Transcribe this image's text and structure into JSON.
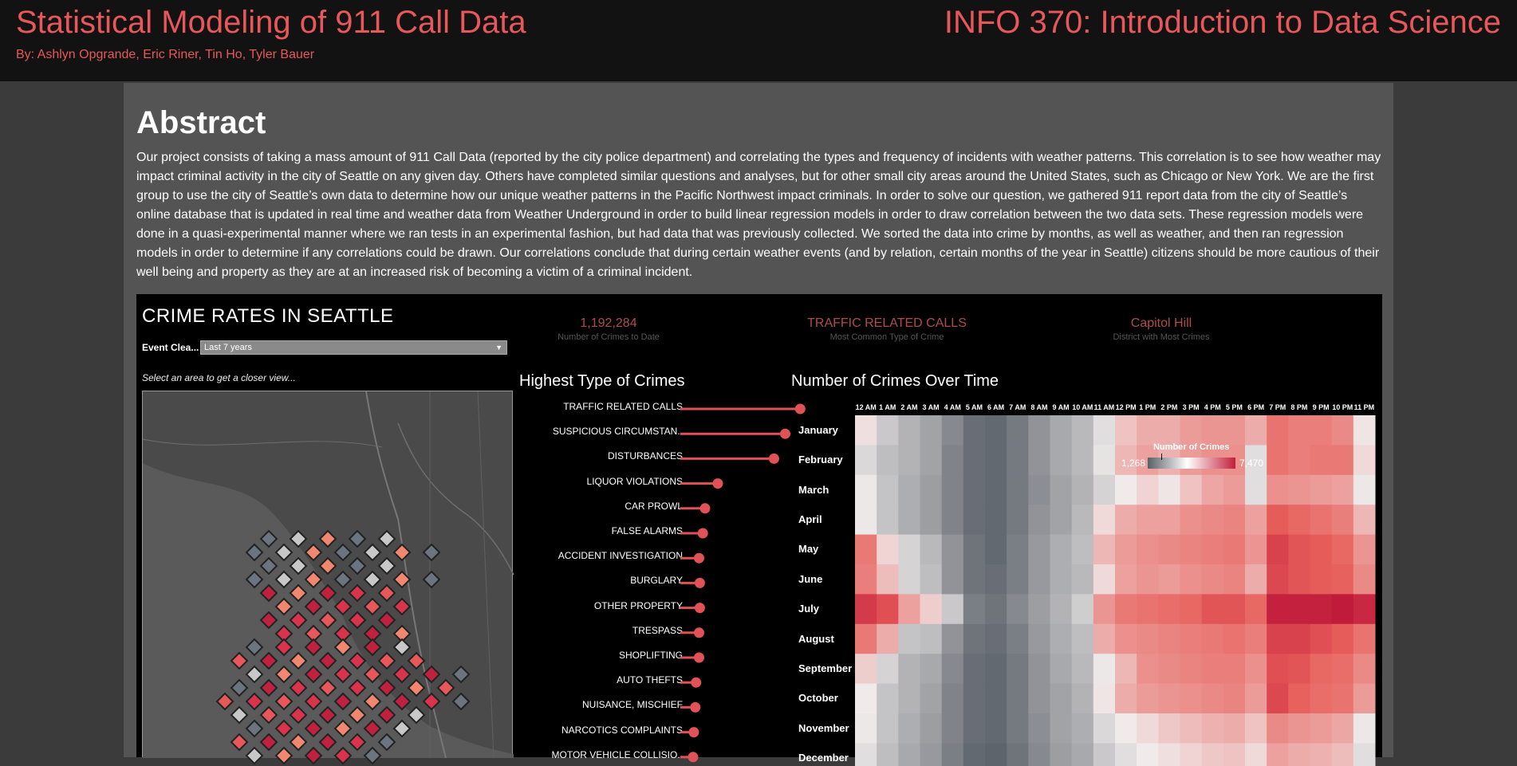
{
  "header": {
    "title": "Statistical Modeling of 911 Call Data",
    "authors": "By: Ashlyn Opgrande, Eric Riner, Tin Ho, Tyler Bauer",
    "course": "INFO 370: Introduction to Data Science"
  },
  "abstract": {
    "heading": "Abstract",
    "body": "Our project consists of taking a mass amount of 911 Call Data (reported by the city police department) and correlating the types and frequency of incidents with weather patterns. This correlation is to see how weather may impact criminal activity in the city of Seattle on any given day. Others have completed similar questions and analyses, but for other small city areas around the United States, such as Chicago or New York. We are the first group to use the city of Seattle’s own data to determine how our unique weather patterns in the Pacific Northwest impact criminals. In order to solve our question, we gathered 911 report data from the city of Seattle’s online database that is updated in real time and weather data from Weather Underground in order to build linear regression models in order to draw correlation between the two data sets. These regression models were done in a quasi-experimental manner where we ran tests in an experimental fashion, but had data that was previously collected. We sorted the data into crime by months, as well as weather, and then ran regression models in order to determine if any correlations could be drawn. Our correlations conclude that during certain weather events (and by relation, certain months of the year in Seattle) citizens should be more cautious of their well being and property as they are at an increased risk of becoming a victim of a criminal incident."
  },
  "dashboard": {
    "title": "CRIME RATES IN SEATTLE",
    "filter_label": "Event Clea...",
    "filter_value": "Last 7 years",
    "map_hint": "Select an area to get a closer view...",
    "kpis": [
      {
        "value": "1,192,284",
        "label": "Number of Crimes to Date"
      },
      {
        "value": "TRAFFIC RELATED CALLS",
        "label": "Most Common Type of Crime"
      },
      {
        "value": "Capitol Hill",
        "label": "District with Most Crimes"
      }
    ],
    "crimes_title": "Highest Type of Crimes",
    "heatmap_title": "Number of Crimes Over Time",
    "legend": {
      "title": "Number of Crimes",
      "min": "1,268",
      "max": "7,470"
    }
  },
  "chart_data": [
    {
      "type": "bar",
      "title": "Highest Type of Crimes",
      "categories": [
        "TRAFFIC RELATED CALLS",
        "SUSPICIOUS CIRCUMSTAN..",
        "DISTURBANCES",
        "LIQUOR VIOLATIONS",
        "CAR PROWL",
        "FALSE ALARMS",
        "ACCIDENT INVESTIGATION",
        "BURGLARY",
        "OTHER PROPERTY",
        "TRESPASS",
        "SHOPLIFTING",
        "AUTO THEFTS",
        "NUISANCE, MISCHIEF",
        "NARCOTICS COMPLAINTS",
        "MOTOR VEHICLE COLLISIO.."
      ],
      "values": [
        160,
        140,
        125,
        50,
        33,
        30,
        25,
        26,
        26,
        25,
        25,
        21,
        20,
        18,
        17
      ]
    },
    {
      "type": "heatmap",
      "title": "Number of Crimes Over Time",
      "x": [
        "12 AM",
        "1 AM",
        "2 AM",
        "3 AM",
        "4 AM",
        "5 AM",
        "6 AM",
        "7 AM",
        "8 AM",
        "9 AM",
        "10 AM",
        "11 AM",
        "12 PM",
        "1 PM",
        "2 PM",
        "3 PM",
        "4 PM",
        "5 PM",
        "6 PM",
        "7 PM",
        "8 PM",
        "9 PM",
        "10 PM",
        "11 PM"
      ],
      "y": [
        "January",
        "February",
        "March",
        "April",
        "May",
        "June",
        "July",
        "August",
        "September",
        "October",
        "November",
        "December"
      ],
      "range": [
        1268,
        7470
      ],
      "values": [
        [
          4100,
          3200,
          2800,
          2500,
          2000,
          1500,
          1400,
          1700,
          2200,
          2600,
          2900,
          3600,
          4600,
          5000,
          5000,
          5300,
          5400,
          5400,
          5000,
          6000,
          5800,
          5800,
          5600,
          4000
        ],
        [
          3500,
          3000,
          2800,
          2500,
          1900,
          1500,
          1400,
          1700,
          2200,
          2600,
          2900,
          3700,
          4800,
          5200,
          4900,
          5300,
          5500,
          5500,
          3600,
          6000,
          5800,
          5900,
          5900,
          4200
        ],
        [
          3800,
          3100,
          2700,
          2400,
          1900,
          1500,
          1400,
          1700,
          2100,
          2500,
          2800,
          3400,
          3900,
          4300,
          4000,
          4600,
          5100,
          5300,
          3600,
          5500,
          5400,
          5300,
          5200,
          3800
        ],
        [
          3800,
          3100,
          2700,
          2400,
          1900,
          1500,
          1400,
          1700,
          2200,
          2500,
          2900,
          4200,
          5000,
          5200,
          5200,
          5500,
          5600,
          5700,
          5200,
          6400,
          6200,
          6000,
          5800,
          4800
        ],
        [
          5900,
          4300,
          3400,
          2900,
          2200,
          1600,
          1400,
          1800,
          2300,
          2700,
          3000,
          4800,
          5300,
          5500,
          5600,
          5700,
          5800,
          5900,
          5400,
          6800,
          6500,
          6400,
          6200,
          5400
        ],
        [
          5800,
          4700,
          3400,
          3000,
          2200,
          1600,
          1500,
          1800,
          2300,
          2700,
          2900,
          4200,
          5200,
          5400,
          5300,
          5500,
          5600,
          5700,
          5000,
          6700,
          6500,
          6400,
          6300,
          5600
        ],
        [
          6900,
          6600,
          5200,
          4400,
          3200,
          1800,
          1600,
          2000,
          2400,
          2800,
          3300,
          5400,
          5900,
          6000,
          6100,
          6200,
          6500,
          6500,
          6200,
          7300,
          7300,
          7300,
          7400,
          7200
        ],
        [
          5900,
          5000,
          3100,
          3000,
          2200,
          1600,
          1500,
          1800,
          2300,
          2700,
          3000,
          5000,
          5500,
          5600,
          5700,
          5800,
          5900,
          6000,
          5800,
          6800,
          6800,
          6600,
          6400,
          6000
        ],
        [
          4400,
          3400,
          2800,
          2600,
          2000,
          1500,
          1400,
          1700,
          2200,
          2600,
          2900,
          3800,
          4800,
          5500,
          5600,
          5700,
          5800,
          5800,
          5500,
          6600,
          6500,
          6200,
          6100,
          5600
        ],
        [
          3900,
          3100,
          2800,
          2500,
          1900,
          1500,
          1400,
          1700,
          2200,
          2500,
          2800,
          4000,
          5000,
          5300,
          5400,
          5500,
          5600,
          5700,
          5300,
          6700,
          6300,
          6100,
          6000,
          5300
        ],
        [
          3800,
          3100,
          2700,
          2400,
          1900,
          1500,
          1400,
          1700,
          2100,
          2500,
          2700,
          3500,
          3900,
          4200,
          4500,
          4700,
          4900,
          5000,
          4600,
          5600,
          5400,
          5300,
          5100,
          3800
        ],
        [
          3600,
          3000,
          2600,
          2300,
          1800,
          1400,
          1300,
          1600,
          2000,
          2400,
          2600,
          3200,
          3600,
          3900,
          4100,
          4300,
          4500,
          4600,
          4200,
          5200,
          5000,
          4900,
          4700,
          3600
        ]
      ]
    }
  ]
}
